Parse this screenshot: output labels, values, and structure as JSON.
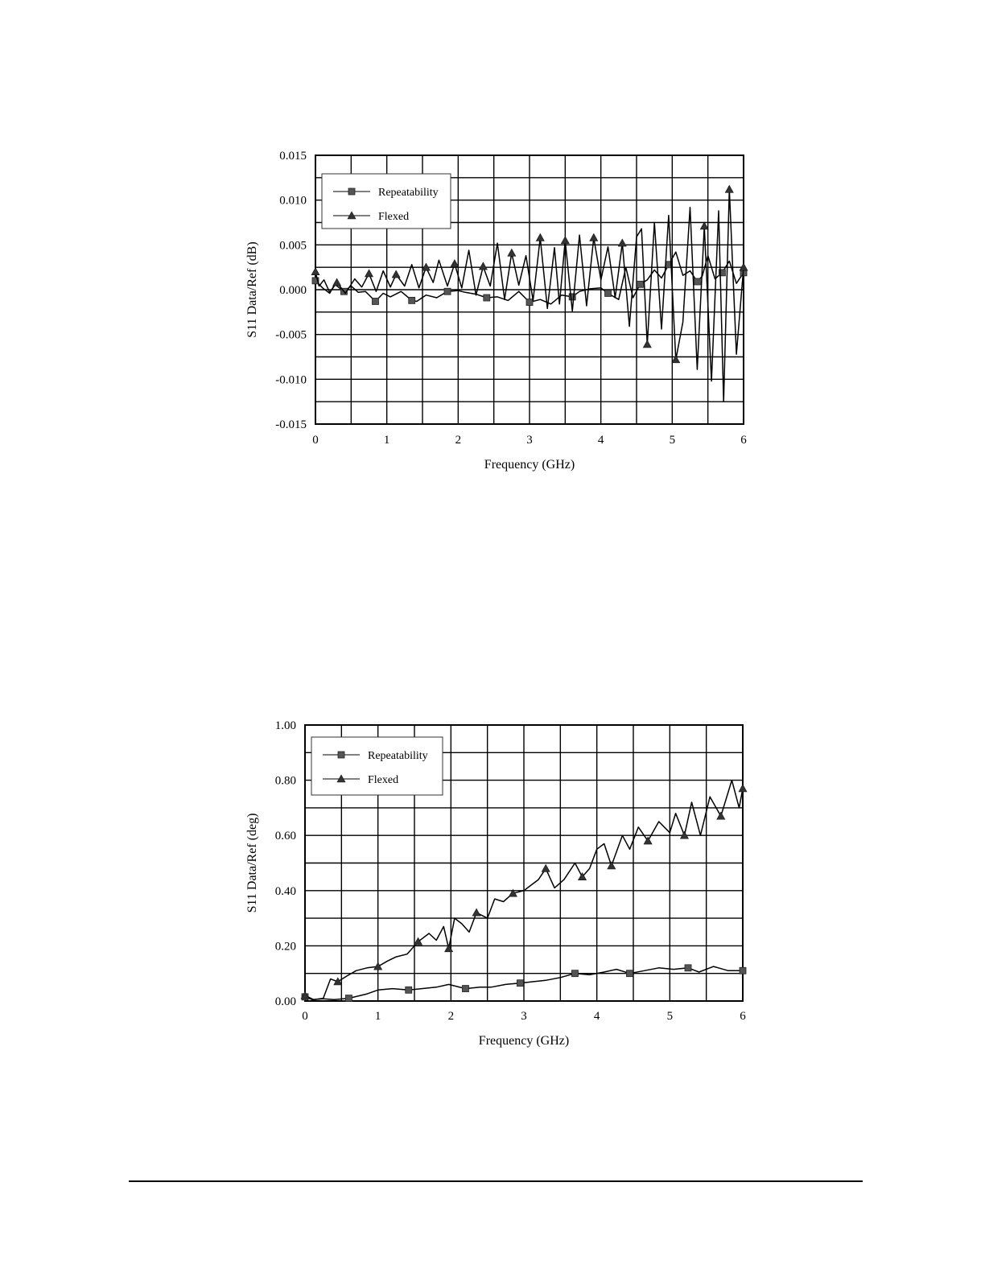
{
  "chart_data": [
    {
      "type": "line",
      "xlabel": "Frequency (GHz)",
      "ylabel": "S11 Data/Ref (dB)",
      "xlim": [
        0,
        6
      ],
      "ylim": [
        -0.015,
        0.015
      ],
      "x_ticks": [
        "0",
        "1",
        "2",
        "3",
        "4",
        "5",
        "6"
      ],
      "y_ticks": [
        "0.015",
        "0.010",
        "0.005",
        "0.000",
        "-0.005",
        "-0.010",
        "-0.015"
      ],
      "grid": true,
      "legend_position": "top-left",
      "series": [
        {
          "name": "Repeatability",
          "marker": "square",
          "x": [
            0,
            0.1,
            0.2,
            0.27,
            0.4,
            0.5,
            0.6,
            0.7,
            0.84,
            0.95,
            1.05,
            1.2,
            1.35,
            1.42,
            1.55,
            1.7,
            1.85,
            2.0,
            2.1,
            2.25,
            2.4,
            2.55,
            2.7,
            2.85,
            3.0,
            3.15,
            3.3,
            3.45,
            3.6,
            3.7,
            3.85,
            4.0,
            4.1,
            4.25,
            4.35,
            4.45,
            4.55,
            4.65,
            4.75,
            4.85,
            4.95,
            5.05,
            5.15,
            5.25,
            5.35,
            5.42,
            5.5,
            5.6,
            5.7,
            5.8,
            5.9,
            6.0
          ],
          "y": [
            0.001,
            0.0002,
            -0.0004,
            0.0006,
            -0.0002,
            0.0004,
            -0.0003,
            -0.0002,
            -0.0013,
            -0.0004,
            -0.0008,
            -0.0002,
            -0.0012,
            -0.0013,
            -0.0006,
            -0.0009,
            -0.0002,
            -0.0001,
            -0.0003,
            -0.0005,
            -0.0009,
            -0.0008,
            -0.0012,
            -0.0002,
            -0.0014,
            -0.0011,
            -0.0016,
            -0.0006,
            -0.0008,
            -0.0002,
            0.0001,
            0.0002,
            -0.0004,
            -0.0011,
            0.0025,
            -0.0009,
            0.0006,
            0.0011,
            0.0022,
            0.0013,
            0.0028,
            0.0042,
            0.0016,
            0.0021,
            0.0009,
            0.0015,
            0.0038,
            0.0012,
            0.0019,
            0.0032,
            0.0007,
            0.0019
          ]
        },
        {
          "name": "Flexed",
          "marker": "triangle",
          "x": [
            0,
            0.05,
            0.12,
            0.2,
            0.3,
            0.42,
            0.55,
            0.65,
            0.75,
            0.85,
            0.95,
            1.05,
            1.13,
            1.25,
            1.35,
            1.45,
            1.55,
            1.65,
            1.73,
            1.85,
            1.95,
            2.05,
            2.15,
            2.25,
            2.35,
            2.45,
            2.55,
            2.65,
            2.75,
            2.85,
            2.95,
            3.05,
            3.15,
            3.25,
            3.35,
            3.42,
            3.5,
            3.6,
            3.7,
            3.8,
            3.9,
            4.0,
            4.1,
            4.2,
            4.3,
            4.4,
            4.5,
            4.57,
            4.65,
            4.75,
            4.85,
            4.95,
            5.05,
            5.15,
            5.25,
            5.35,
            5.45,
            5.55,
            5.65,
            5.72,
            5.8,
            5.9,
            6.0
          ],
          "y": [
            0.002,
            0.0004,
            0.0011,
            -0.0003,
            0.0008,
            -0.0004,
            0.0012,
            0.0003,
            0.0018,
            -0.0002,
            0.0021,
            0.0003,
            0.0017,
            0.0004,
            0.0028,
            0.0002,
            0.0025,
            0.0008,
            0.0033,
            0.0004,
            0.0029,
            0.0002,
            0.0044,
            -0.0006,
            0.0026,
            0.0004,
            0.0052,
            -0.0011,
            0.0041,
            0.0005,
            0.0038,
            -0.0012,
            0.0058,
            -0.0021,
            0.0047,
            -0.0016,
            0.0055,
            -0.0024,
            0.0061,
            -0.0018,
            0.0058,
            0.0011,
            0.0048,
            -0.0009,
            0.0052,
            -0.0041,
            0.0059,
            0.0068,
            -0.0061,
            0.0075,
            -0.0044,
            0.0083,
            -0.0078,
            -0.0036,
            0.0092,
            -0.0089,
            0.0071,
            -0.0102,
            0.0088,
            -0.0125,
            0.0112,
            -0.0072,
            0.0025
          ]
        }
      ]
    },
    {
      "type": "line",
      "xlabel": "Frequency (GHz)",
      "ylabel": "S11 Data/Ref (deg)",
      "xlim": [
        0,
        6
      ],
      "ylim": [
        0,
        1
      ],
      "x_ticks": [
        "0",
        "1",
        "2",
        "3",
        "4",
        "5",
        "6"
      ],
      "y_ticks": [
        "1.00",
        "0.80",
        "0.60",
        "0.40",
        "0.20",
        "0.00"
      ],
      "grid": true,
      "legend_position": "top-left",
      "series": [
        {
          "name": "Repeatability",
          "marker": "square",
          "x": [
            0,
            0.1,
            0.25,
            0.4,
            0.6,
            0.84,
            1.0,
            1.2,
            1.42,
            1.6,
            1.8,
            1.97,
            2.2,
            2.4,
            2.55,
            2.75,
            2.95,
            3.12,
            3.3,
            3.5,
            3.7,
            3.9,
            4.1,
            4.27,
            4.45,
            4.65,
            4.85,
            5.05,
            5.25,
            5.4,
            5.6,
            5.8,
            6.0
          ],
          "y": [
            0.015,
            0.005,
            0.008,
            0.005,
            0.01,
            0.025,
            0.04,
            0.045,
            0.04,
            0.045,
            0.05,
            0.06,
            0.045,
            0.05,
            0.05,
            0.06,
            0.065,
            0.07,
            0.075,
            0.085,
            0.1,
            0.095,
            0.105,
            0.115,
            0.1,
            0.11,
            0.12,
            0.115,
            0.12,
            0.105,
            0.125,
            0.11,
            0.11
          ]
        },
        {
          "name": "Flexed",
          "marker": "triangle",
          "x": [
            0,
            0.12,
            0.25,
            0.35,
            0.45,
            0.57,
            0.7,
            0.85,
            1.0,
            1.13,
            1.25,
            1.4,
            1.55,
            1.7,
            1.8,
            1.9,
            1.97,
            2.05,
            2.15,
            2.25,
            2.35,
            2.5,
            2.6,
            2.72,
            2.85,
            3.0,
            3.1,
            3.2,
            3.3,
            3.42,
            3.55,
            3.7,
            3.8,
            3.9,
            4.0,
            4.1,
            4.2,
            4.35,
            4.45,
            4.57,
            4.7,
            4.85,
            5.0,
            5.08,
            5.2,
            5.3,
            5.42,
            5.55,
            5.7,
            5.85,
            5.95,
            6.0
          ],
          "y": [
            0.02,
            0.005,
            0.01,
            0.08,
            0.07,
            0.09,
            0.11,
            0.12,
            0.125,
            0.145,
            0.16,
            0.17,
            0.215,
            0.245,
            0.22,
            0.27,
            0.19,
            0.3,
            0.28,
            0.25,
            0.32,
            0.3,
            0.37,
            0.36,
            0.39,
            0.4,
            0.42,
            0.44,
            0.48,
            0.41,
            0.44,
            0.5,
            0.45,
            0.48,
            0.55,
            0.57,
            0.49,
            0.6,
            0.55,
            0.63,
            0.58,
            0.65,
            0.61,
            0.68,
            0.6,
            0.72,
            0.6,
            0.74,
            0.67,
            0.8,
            0.7,
            0.77
          ]
        }
      ]
    }
  ]
}
